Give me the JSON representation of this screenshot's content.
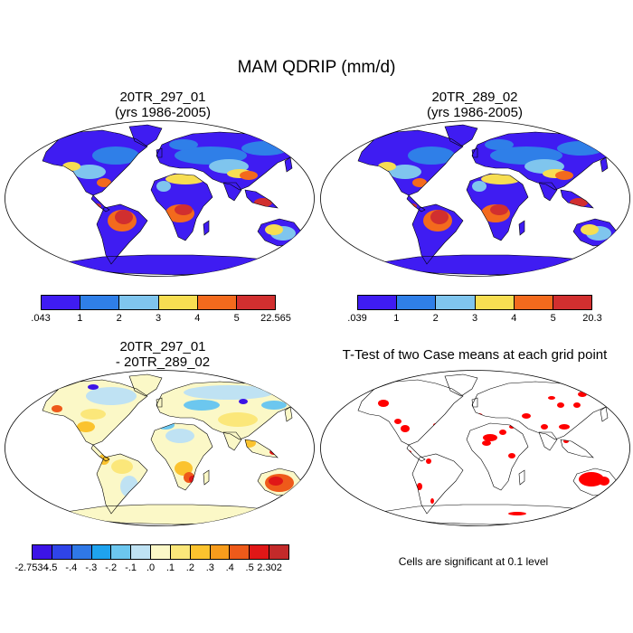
{
  "main_title": "MAM QDRIP (mm/d)",
  "panels": [
    {
      "id": "p1",
      "title_line1": "20TR_297_01",
      "title_line2": "(yrs 1986-2005)",
      "colorbar": {
        "labels": [
          ".043",
          "1",
          "2",
          "3",
          "4",
          "5",
          "22.565"
        ],
        "colors": [
          "#3f1cf2",
          "#2f7fe8",
          "#7fc5ee",
          "#f7de52",
          "#f36a1d",
          "#d12f2f"
        ]
      }
    },
    {
      "id": "p2",
      "title_line1": "20TR_289_02",
      "title_line2": "(yrs 1986-2005)",
      "colorbar": {
        "labels": [
          ".039",
          "1",
          "2",
          "3",
          "4",
          "5",
          "20.3"
        ],
        "colors": [
          "#3f1cf2",
          "#2f7fe8",
          "#7fc5ee",
          "#f7de52",
          "#f36a1d",
          "#d12f2f"
        ]
      }
    },
    {
      "id": "p3",
      "title_line1": "20TR_297_01",
      "title_line2": "- 20TR_289_02",
      "colorbar": {
        "labels": [
          "-2.7534",
          "-.5",
          "-.4",
          "-.3",
          "-.2",
          "-.1",
          ".0",
          ".1",
          ".2",
          ".3",
          ".4",
          ".5",
          "2.302"
        ],
        "colors": [
          "#3c14e6",
          "#2f44e8",
          "#2f78e6",
          "#1fa3ee",
          "#6cc7ef",
          "#bfe2f3",
          "#fbf8c7",
          "#fbe77a",
          "#fbc32e",
          "#f79c1c",
          "#ee5a1a",
          "#e01717",
          "#c32a2a"
        ]
      }
    },
    {
      "id": "p4",
      "title_line1": "T-Test of two Case means at each grid point",
      "note": "Cells are significant at 0.1 level",
      "significant_color": "#ff0000"
    }
  ]
}
